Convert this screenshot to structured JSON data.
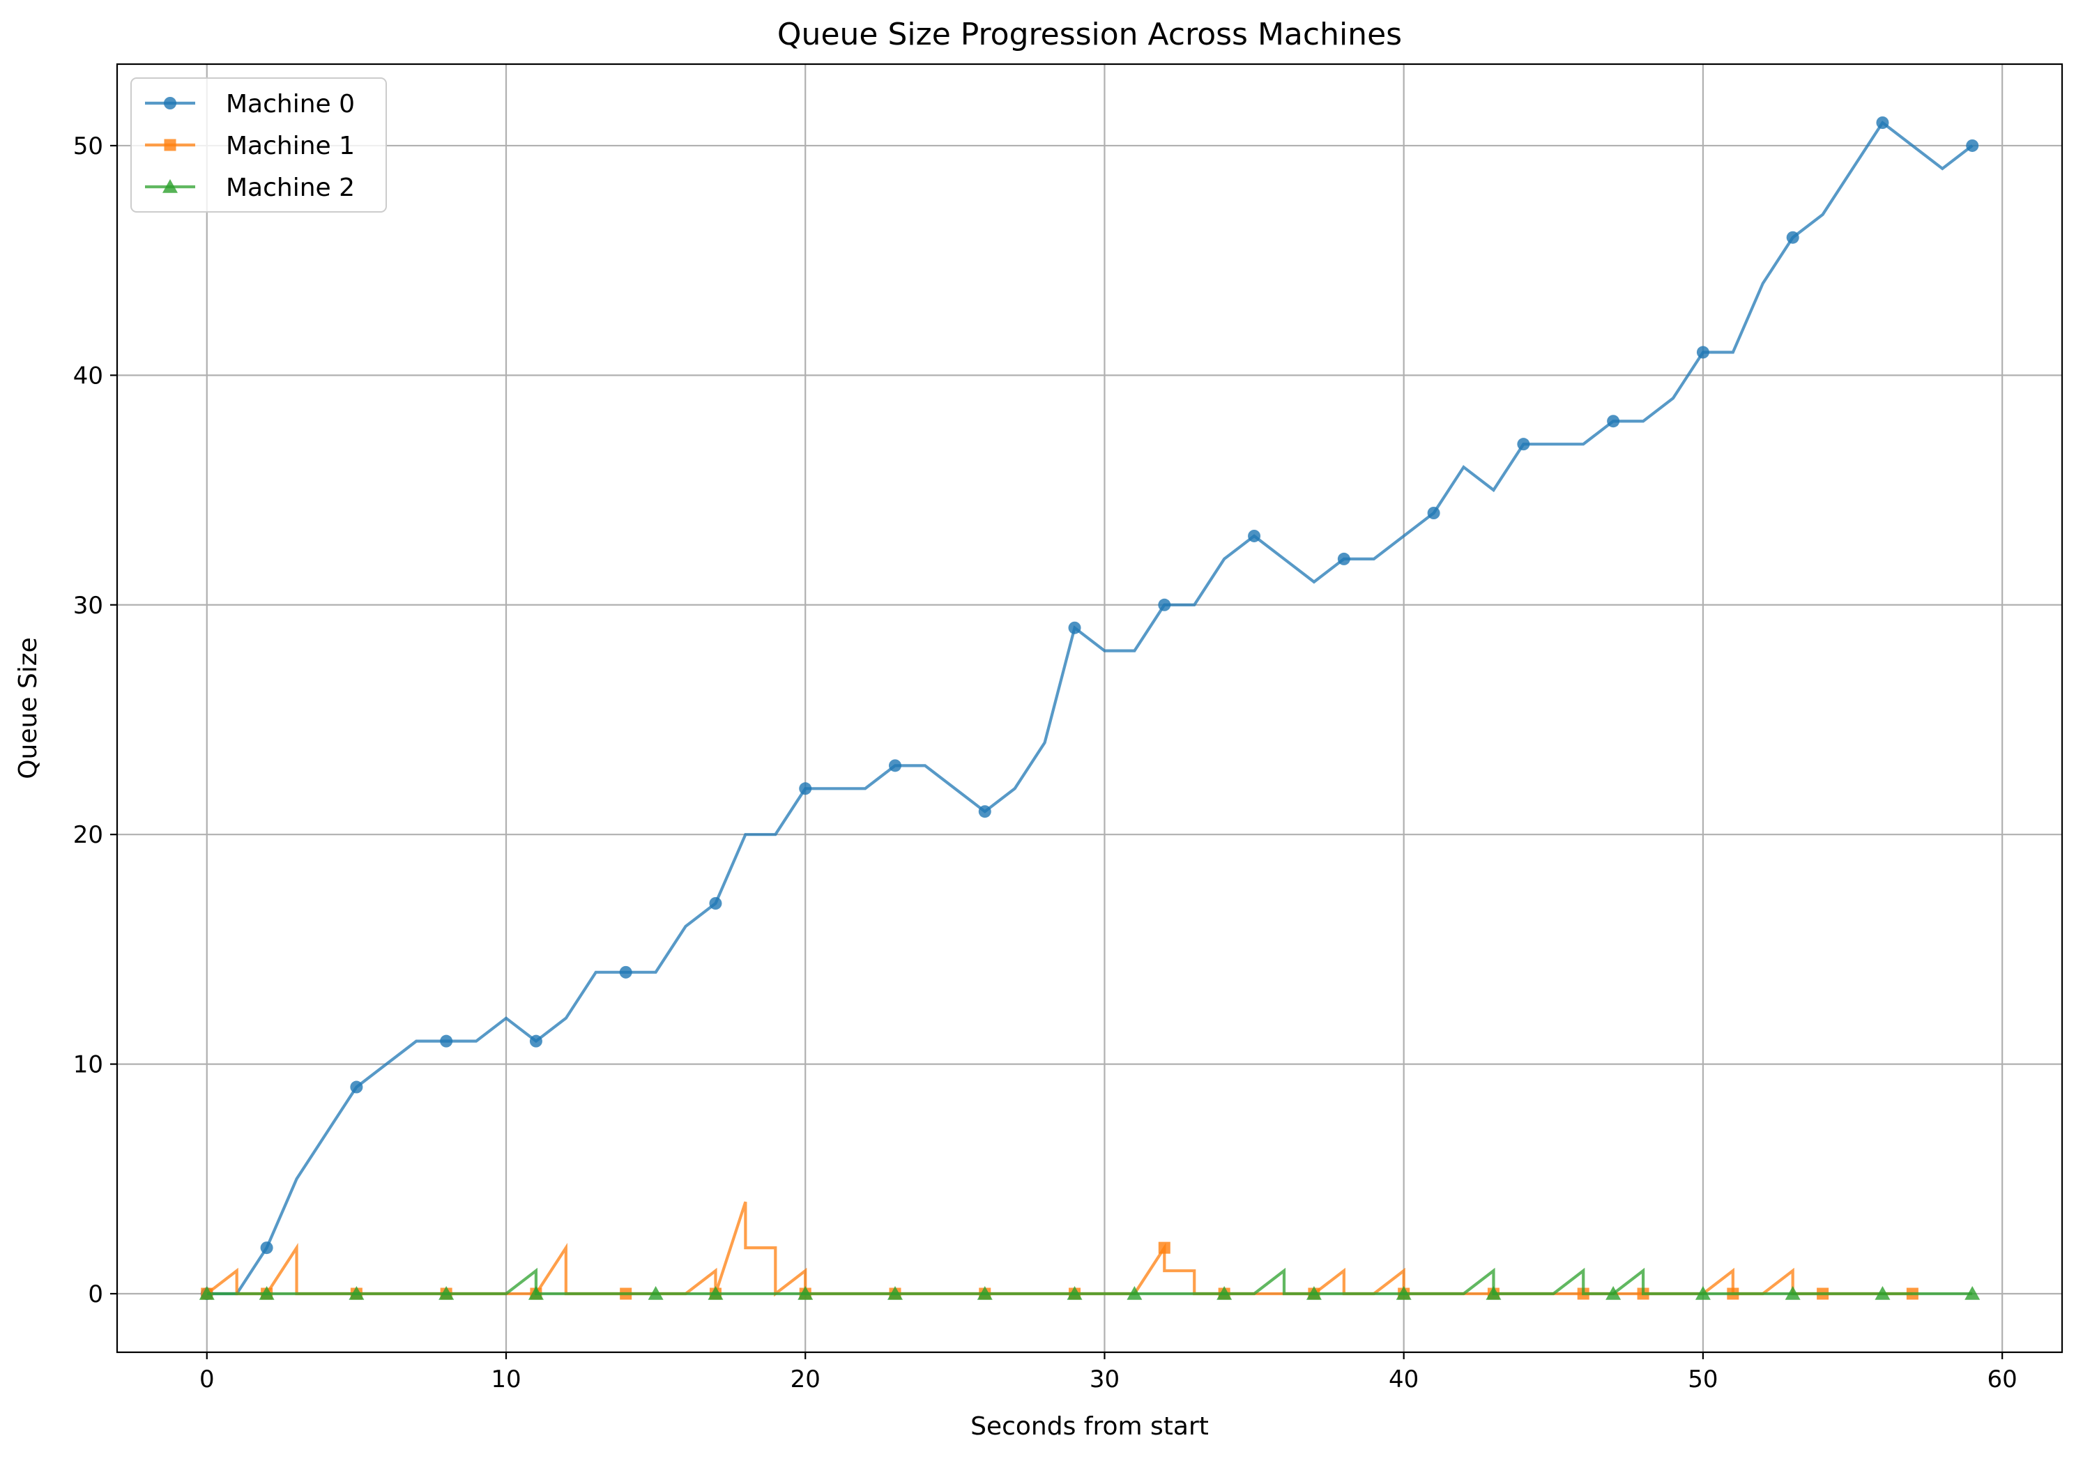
{
  "chart_data": {
    "type": "line",
    "title": "Queue Size Progression Across Machines",
    "xlabel": "Seconds from start",
    "ylabel": "Queue Size",
    "xlim": [
      -3,
      62
    ],
    "ylim": [
      -2.55,
      53.55
    ],
    "xticks": [
      0,
      10,
      20,
      30,
      40,
      50,
      60
    ],
    "yticks": [
      0,
      10,
      20,
      30,
      40,
      50
    ],
    "grid": true,
    "legend_position": "upper-left",
    "series": [
      {
        "name": "Machine 0",
        "color": "#1f77b4",
        "marker": "circle",
        "points": [
          [
            0,
            0
          ],
          [
            1,
            0
          ],
          [
            2,
            2
          ],
          [
            3,
            5
          ],
          [
            4,
            7
          ],
          [
            5,
            9
          ],
          [
            6,
            10
          ],
          [
            7,
            11
          ],
          [
            8,
            11
          ],
          [
            9,
            11
          ],
          [
            10,
            12
          ],
          [
            11,
            11
          ],
          [
            12,
            12
          ],
          [
            13,
            14
          ],
          [
            14,
            14
          ],
          [
            15,
            14
          ],
          [
            16,
            16
          ],
          [
            17,
            17
          ],
          [
            18,
            20
          ],
          [
            19,
            20
          ],
          [
            20,
            22
          ],
          [
            21,
            22
          ],
          [
            22,
            22
          ],
          [
            23,
            23
          ],
          [
            24,
            23
          ],
          [
            25,
            22
          ],
          [
            26,
            21
          ],
          [
            27,
            22
          ],
          [
            28,
            24
          ],
          [
            29,
            29
          ],
          [
            30,
            28
          ],
          [
            31,
            28
          ],
          [
            32,
            30
          ],
          [
            33,
            30
          ],
          [
            34,
            32
          ],
          [
            35,
            33
          ],
          [
            36,
            32
          ],
          [
            37,
            31
          ],
          [
            38,
            32
          ],
          [
            39,
            32
          ],
          [
            40,
            33
          ],
          [
            41,
            34
          ],
          [
            42,
            36
          ],
          [
            43,
            35
          ],
          [
            44,
            37
          ],
          [
            45,
            37
          ],
          [
            46,
            37
          ],
          [
            47,
            38
          ],
          [
            48,
            38
          ],
          [
            49,
            39
          ],
          [
            50,
            41
          ],
          [
            51,
            41
          ],
          [
            52,
            44
          ],
          [
            53,
            46
          ],
          [
            54,
            47
          ],
          [
            55,
            49
          ],
          [
            56,
            51
          ],
          [
            57,
            50
          ],
          [
            58,
            49
          ],
          [
            59,
            50
          ]
        ],
        "marker_x": [
          0,
          2,
          5,
          8,
          11,
          14,
          17,
          20,
          23,
          26,
          29,
          32,
          35,
          38,
          41,
          44,
          47,
          50,
          53,
          56,
          59
        ]
      },
      {
        "name": "Machine 1",
        "color": "#ff7f0e",
        "marker": "square",
        "points": [
          [
            0,
            0
          ],
          [
            1,
            1
          ],
          [
            1,
            0
          ],
          [
            2,
            0
          ],
          [
            3,
            2
          ],
          [
            3,
            0
          ],
          [
            4,
            0
          ],
          [
            5,
            0
          ],
          [
            6,
            0
          ],
          [
            7,
            0
          ],
          [
            8,
            0
          ],
          [
            9,
            0
          ],
          [
            10,
            0
          ],
          [
            11,
            0
          ],
          [
            12,
            2
          ],
          [
            12,
            0
          ],
          [
            13,
            0
          ],
          [
            14,
            0
          ],
          [
            15,
            0
          ],
          [
            16,
            0
          ],
          [
            17,
            1
          ],
          [
            17,
            0
          ],
          [
            18,
            4
          ],
          [
            18,
            2
          ],
          [
            19,
            2
          ],
          [
            19,
            0
          ],
          [
            20,
            1
          ],
          [
            20,
            0
          ],
          [
            21,
            0
          ],
          [
            22,
            0
          ],
          [
            23,
            0
          ],
          [
            24,
            0
          ],
          [
            25,
            0
          ],
          [
            26,
            0
          ],
          [
            27,
            0
          ],
          [
            28,
            0
          ],
          [
            29,
            0
          ],
          [
            30,
            0
          ],
          [
            31,
            0
          ],
          [
            32,
            2
          ],
          [
            32,
            1
          ],
          [
            33,
            1
          ],
          [
            33,
            0
          ],
          [
            34,
            0
          ],
          [
            35,
            0
          ],
          [
            36,
            0
          ],
          [
            37,
            0
          ],
          [
            38,
            1
          ],
          [
            38,
            0
          ],
          [
            39,
            0
          ],
          [
            40,
            1
          ],
          [
            40,
            0
          ],
          [
            41,
            0
          ],
          [
            42,
            0
          ],
          [
            43,
            0
          ],
          [
            44,
            0
          ],
          [
            45,
            0
          ],
          [
            46,
            0
          ],
          [
            47,
            0
          ],
          [
            48,
            0
          ],
          [
            49,
            0
          ],
          [
            50,
            0
          ],
          [
            51,
            1
          ],
          [
            51,
            0
          ],
          [
            52,
            0
          ],
          [
            53,
            1
          ],
          [
            53,
            0
          ],
          [
            54,
            0
          ],
          [
            55,
            0
          ],
          [
            56,
            0
          ],
          [
            57,
            0
          ]
        ],
        "marker_points": [
          [
            0,
            0
          ],
          [
            2,
            0
          ],
          [
            5,
            0
          ],
          [
            8,
            0
          ],
          [
            11,
            0
          ],
          [
            14,
            0
          ],
          [
            17,
            0
          ],
          [
            20,
            0
          ],
          [
            23,
            0
          ],
          [
            26,
            0
          ],
          [
            29,
            0
          ],
          [
            32,
            2
          ],
          [
            34,
            0
          ],
          [
            37,
            0
          ],
          [
            40,
            0
          ],
          [
            43,
            0
          ],
          [
            46,
            0
          ],
          [
            48,
            0
          ],
          [
            51,
            0
          ],
          [
            54,
            0
          ],
          [
            57,
            0
          ]
        ]
      },
      {
        "name": "Machine 2",
        "color": "#2ca02c",
        "marker": "triangle",
        "points": [
          [
            0,
            0
          ],
          [
            1,
            0
          ],
          [
            2,
            0
          ],
          [
            3,
            0
          ],
          [
            4,
            0
          ],
          [
            5,
            0
          ],
          [
            6,
            0
          ],
          [
            7,
            0
          ],
          [
            8,
            0
          ],
          [
            9,
            0
          ],
          [
            10,
            0
          ],
          [
            11,
            1
          ],
          [
            11,
            0
          ],
          [
            12,
            0
          ],
          [
            13,
            0
          ],
          [
            14,
            0
          ],
          [
            15,
            0
          ],
          [
            16,
            0
          ],
          [
            17,
            0
          ],
          [
            18,
            0
          ],
          [
            19,
            0
          ],
          [
            20,
            0
          ],
          [
            21,
            0
          ],
          [
            22,
            0
          ],
          [
            23,
            0
          ],
          [
            24,
            0
          ],
          [
            25,
            0
          ],
          [
            26,
            0
          ],
          [
            27,
            0
          ],
          [
            28,
            0
          ],
          [
            29,
            0
          ],
          [
            30,
            0
          ],
          [
            31,
            0
          ],
          [
            32,
            0
          ],
          [
            33,
            0
          ],
          [
            34,
            0
          ],
          [
            35,
            0
          ],
          [
            36,
            1
          ],
          [
            36,
            0
          ],
          [
            37,
            0
          ],
          [
            38,
            0
          ],
          [
            39,
            0
          ],
          [
            40,
            0
          ],
          [
            41,
            0
          ],
          [
            42,
            0
          ],
          [
            43,
            1
          ],
          [
            43,
            0
          ],
          [
            44,
            0
          ],
          [
            45,
            0
          ],
          [
            46,
            1
          ],
          [
            46,
            0
          ],
          [
            47,
            0
          ],
          [
            48,
            1
          ],
          [
            48,
            0
          ],
          [
            49,
            0
          ],
          [
            50,
            0
          ],
          [
            51,
            0
          ],
          [
            52,
            0
          ],
          [
            53,
            0
          ],
          [
            54,
            0
          ],
          [
            55,
            0
          ],
          [
            56,
            0
          ],
          [
            57,
            0
          ],
          [
            58,
            0
          ],
          [
            59,
            0
          ]
        ],
        "marker_points": [
          [
            0,
            0
          ],
          [
            2,
            0
          ],
          [
            5,
            0
          ],
          [
            8,
            0
          ],
          [
            11,
            0
          ],
          [
            15,
            0
          ],
          [
            17,
            0
          ],
          [
            20,
            0
          ],
          [
            23,
            0
          ],
          [
            26,
            0
          ],
          [
            29,
            0
          ],
          [
            31,
            0
          ],
          [
            34,
            0
          ],
          [
            37,
            0
          ],
          [
            40,
            0
          ],
          [
            43,
            0
          ],
          [
            47,
            0
          ],
          [
            50,
            0
          ],
          [
            53,
            0
          ],
          [
            56,
            0
          ],
          [
            59,
            0
          ]
        ]
      }
    ]
  }
}
